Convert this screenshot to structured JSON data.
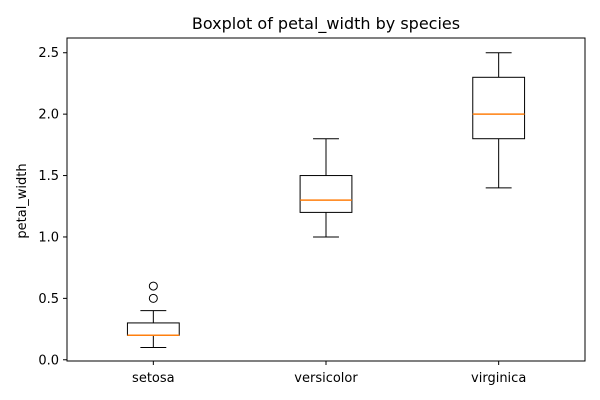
{
  "chart_data": {
    "type": "boxplot",
    "title": "Boxplot of petal_width by species",
    "xlabel": "",
    "ylabel": "petal_width",
    "categories": [
      "setosa",
      "versicolor",
      "virginica"
    ],
    "ylim": [
      -0.01,
      2.62
    ],
    "yticks": [
      "0.0",
      "0.5",
      "1.0",
      "1.5",
      "2.0",
      "2.5"
    ],
    "grid": false,
    "series": [
      {
        "category": "setosa",
        "whisker_low": 0.1,
        "q1": 0.2,
        "median": 0.2,
        "q3": 0.3,
        "whisker_high": 0.4,
        "outliers": [
          0.5,
          0.6
        ]
      },
      {
        "category": "versicolor",
        "whisker_low": 1.0,
        "q1": 1.2,
        "median": 1.3,
        "q3": 1.5,
        "whisker_high": 1.8,
        "outliers": []
      },
      {
        "category": "virginica",
        "whisker_low": 1.4,
        "q1": 1.8,
        "median": 2.0,
        "q3": 2.3,
        "whisker_high": 2.5,
        "outliers": []
      }
    ],
    "colors": {
      "box": "#000000",
      "median": "#ff7f0e",
      "axis": "#000000"
    }
  }
}
